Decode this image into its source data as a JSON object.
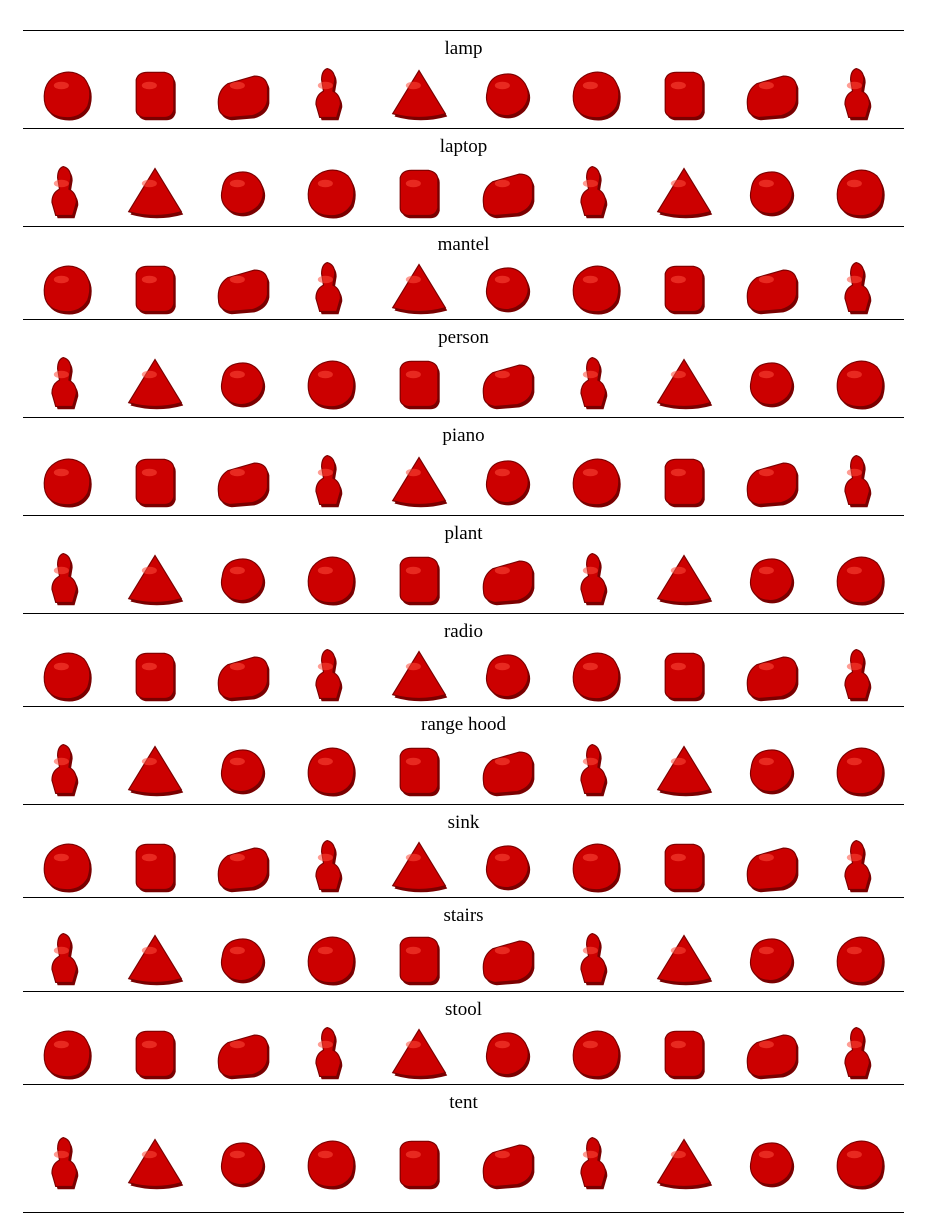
{
  "figure": {
    "sections": [
      {
        "label": "lamp"
      },
      {
        "label": "laptop"
      },
      {
        "label": "mantel"
      },
      {
        "label": "person"
      },
      {
        "label": "piano"
      },
      {
        "label": "plant"
      },
      {
        "label": "radio"
      },
      {
        "label": "range hood"
      },
      {
        "label": "sink"
      },
      {
        "label": "stairs"
      },
      {
        "label": "stool"
      },
      {
        "label": "tent"
      }
    ],
    "samples_per_row": 10,
    "shape_color": "#cc0000",
    "shape_shadow_color": "#7a0000",
    "shape_highlight_color": "#ff4a3a"
  }
}
